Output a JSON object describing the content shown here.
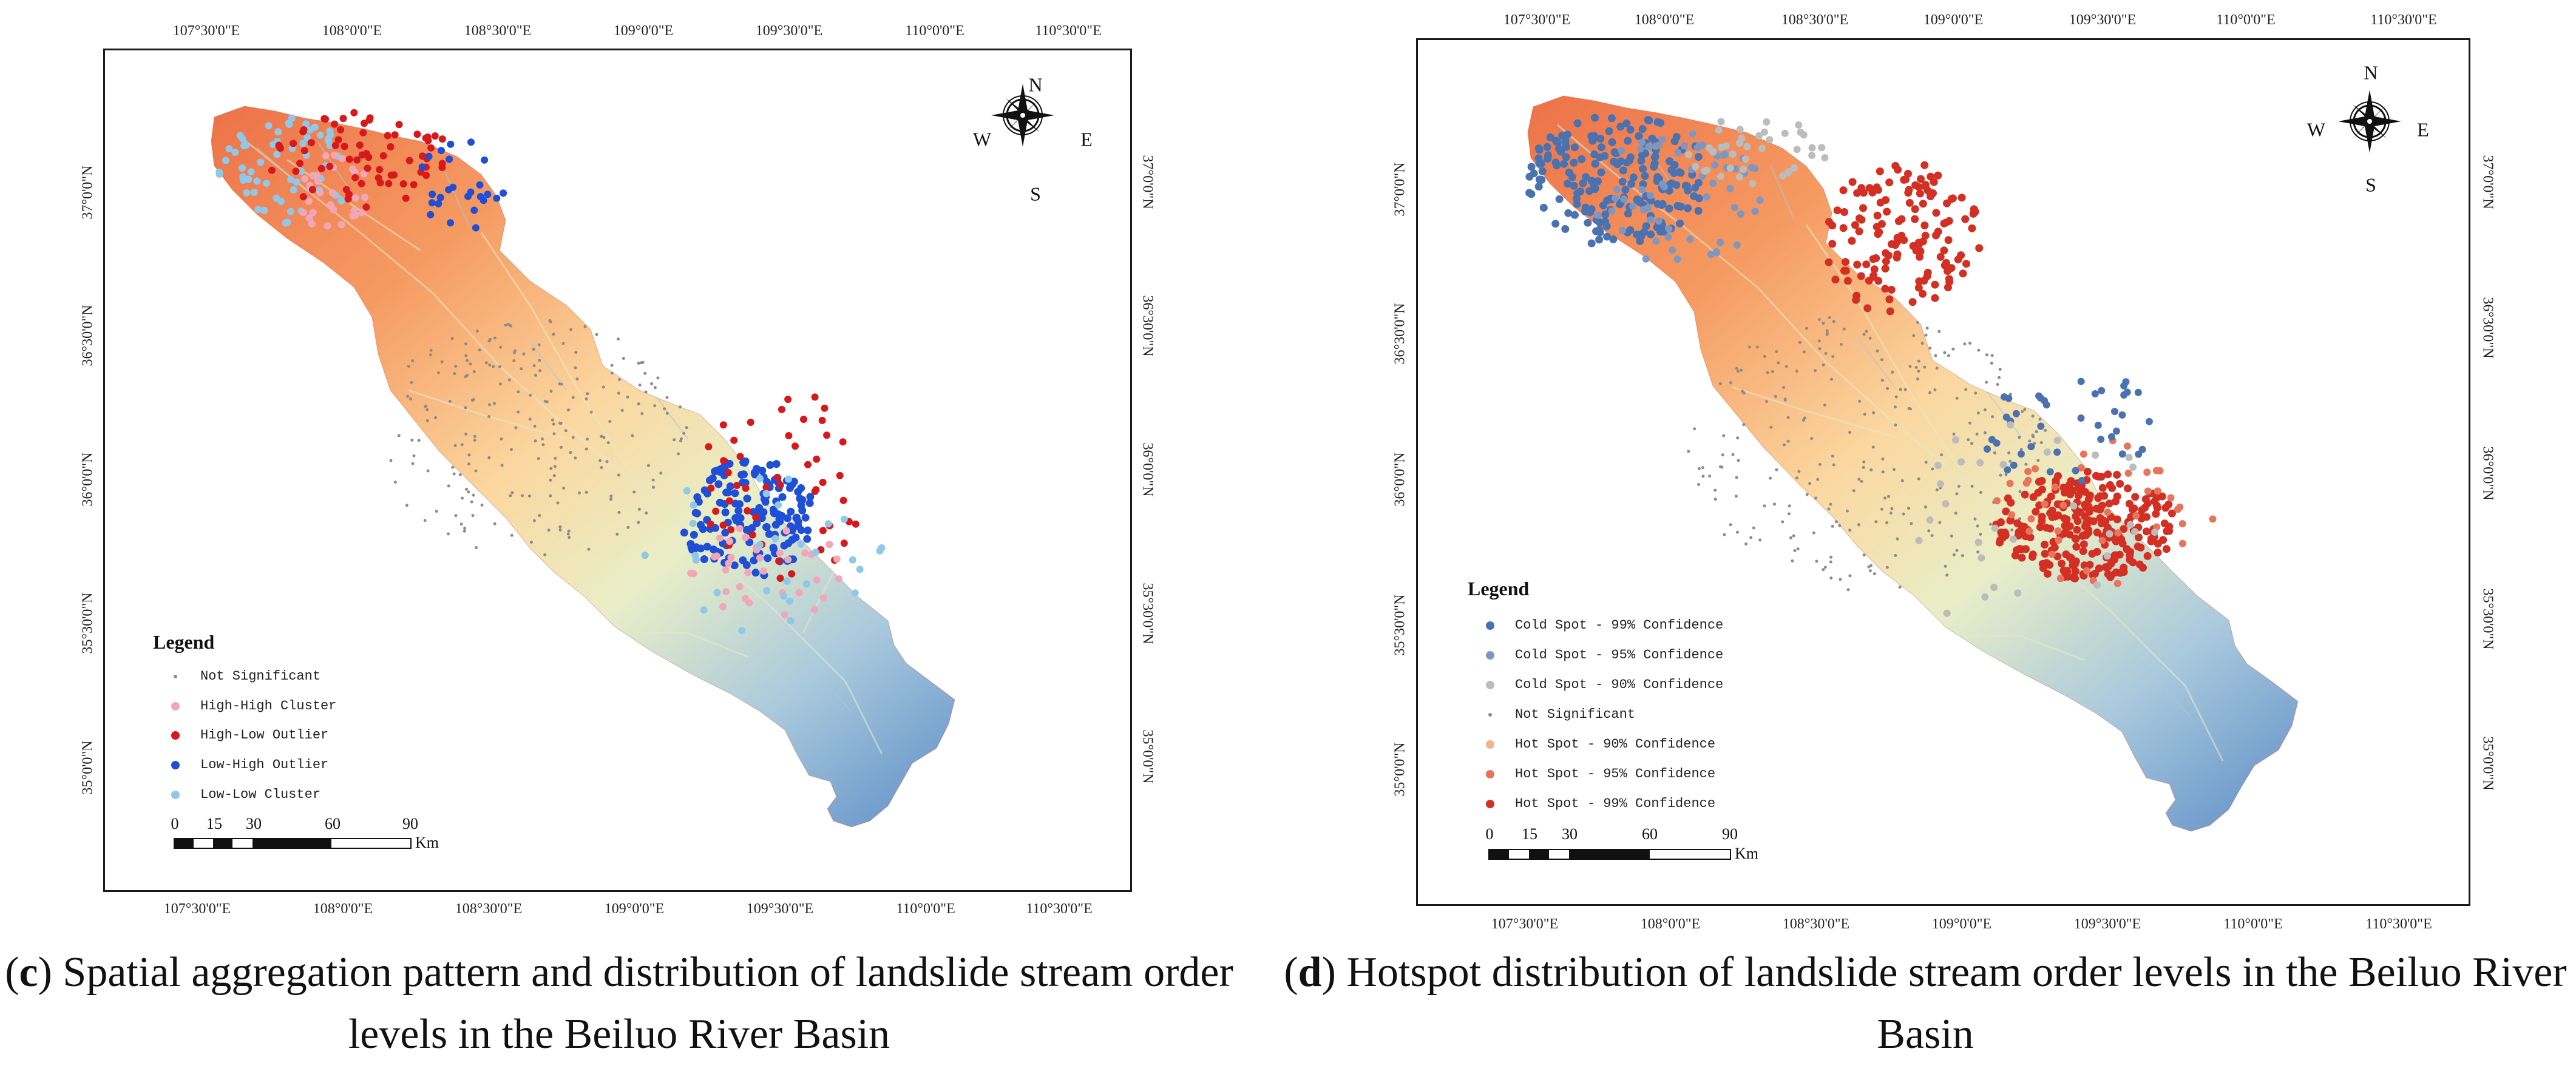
{
  "panels": [
    {
      "id": "c",
      "top_ticks": [
        "107°30'0\"E",
        "108°0'0\"E",
        "108°30'0\"E",
        "109°0'0\"E",
        "109°30'0\"E",
        "110°0'0\"E",
        "110°30'0\"E"
      ],
      "bottom_ticks": [
        "107°30'0\"E",
        "108°0'0\"E",
        "108°30'0\"E",
        "109°0'0\"E",
        "109°30'0\"E",
        "110°0'0\"E",
        "110°30'0\"E"
      ],
      "left_ticks": [
        "37°0'0\"N",
        "36°30'0\"N",
        "36°0'0\"N",
        "35°30'0\"N",
        "35°0'0\"N"
      ],
      "right_ticks": [
        "37°0'0\"N",
        "36°30'0\"N",
        "36°0'0\"N",
        "35°30'0\"N",
        "35°0'0\"N"
      ],
      "compass": {
        "n": "N",
        "s": "S",
        "e": "E",
        "w": "W"
      },
      "legend": {
        "title": "Legend",
        "items": [
          {
            "label": "Not Significant",
            "color": "#8c8c8c",
            "size": "small"
          },
          {
            "label": "High-High Cluster",
            "color": "#f2a7b8",
            "size": "large"
          },
          {
            "label": "High-Low Outlier",
            "color": "#d7191c",
            "size": "large"
          },
          {
            "label": "Low-High Outlier",
            "color": "#1f4fd6",
            "size": "large"
          },
          {
            "label": "Low-Low Cluster",
            "color": "#8fc8e8",
            "size": "large"
          }
        ]
      },
      "scale": {
        "labels": [
          "0",
          "15",
          "30",
          "60",
          "90"
        ],
        "unit": "Km"
      },
      "caption": {
        "letter": "c",
        "text": ") Spatial aggregation pattern and distribution of landslide stream order levels in the Beiluo River Basin"
      }
    },
    {
      "id": "d",
      "top_ticks": [
        "107°30'0\"E",
        "108°0'0\"E",
        "108°30'0\"E",
        "109°0'0\"E",
        "109°30'0\"E",
        "110°0'0\"E",
        "110°30'0\"E"
      ],
      "bottom_ticks": [
        "107°30'0\"E",
        "108°0'0\"E",
        "108°30'0\"E",
        "109°0'0\"E",
        "109°30'0\"E",
        "110°0'0\"E",
        "110°30'0\"E"
      ],
      "left_ticks": [
        "37°0'0\"N",
        "36°30'0\"N",
        "36°0'0\"N",
        "35°30'0\"N",
        "35°0'0\"N"
      ],
      "right_ticks": [
        "37°0'0\"N",
        "36°30'0\"N",
        "36°0'0\"N",
        "35°30'0\"N",
        "35°0'0\"N"
      ],
      "compass": {
        "n": "N",
        "s": "S",
        "e": "E",
        "w": "W"
      },
      "legend": {
        "title": "Legend",
        "items": [
          {
            "label": "Cold Spot - 99% Confidence",
            "color": "#4a72b0",
            "size": "large"
          },
          {
            "label": "Cold Spot - 95% Confidence",
            "color": "#7f97c0",
            "size": "large"
          },
          {
            "label": "Cold Spot - 90% Confidence",
            "color": "#bcbcbc",
            "size": "large"
          },
          {
            "label": "Not Significant",
            "color": "#8c8c8c",
            "size": "small"
          },
          {
            "label": "Hot Spot - 90% Confidence",
            "color": "#f2b48a",
            "size": "large"
          },
          {
            "label": "Hot Spot - 95% Confidence",
            "color": "#e8745a",
            "size": "large"
          },
          {
            "label": "Hot Spot - 99% Confidence",
            "color": "#d32f23",
            "size": "large"
          }
        ]
      },
      "scale": {
        "labels": [
          "0",
          "15",
          "30",
          "60",
          "90"
        ],
        "unit": "Km"
      },
      "caption": {
        "letter": "d",
        "text": ") Hotspot distribution of landslide stream order levels in the Beiluo River Basin"
      }
    }
  ]
}
